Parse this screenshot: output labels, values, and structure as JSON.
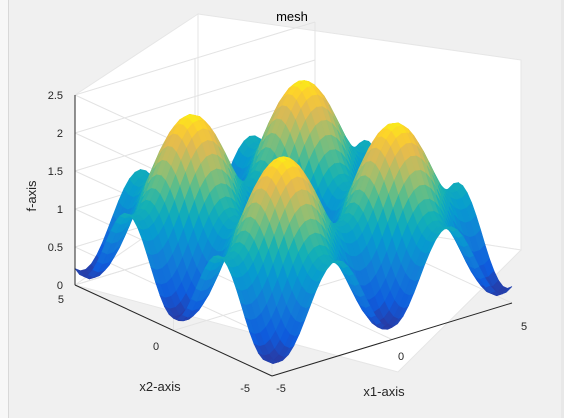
{
  "figure": {
    "title": "mesh"
  },
  "chart_data": {
    "type": "surface",
    "title": "mesh",
    "xlabel": "x1-axis",
    "ylabel": "x2-axis",
    "zlabel": "f-axis",
    "xlim": [
      -5,
      5
    ],
    "ylim": [
      -5,
      5
    ],
    "zlim": [
      0,
      2.5
    ],
    "x_ticks": [
      "-5",
      "0",
      "5"
    ],
    "y_ticks": [
      "-5",
      "0",
      "5"
    ],
    "z_ticks": [
      "0",
      "0.5",
      "1",
      "1.5",
      "2",
      "2.5"
    ],
    "grid": true,
    "colormap": "parula",
    "colors": {
      "background": "#f0f0f0",
      "axes_bg": "#ffffff",
      "grid": "#e6e6e6",
      "axis_line": "#262626"
    },
    "z_range_observed": [
      0,
      2.35
    ],
    "peaks": [
      {
        "x1": -1.6,
        "x2": 1.6,
        "f": 2.35
      },
      {
        "x1": -1.6,
        "x2": -1.6,
        "f": 2.35
      },
      {
        "x1": 1.6,
        "x2": 1.6,
        "f": 2.35
      },
      {
        "x1": 1.6,
        "x2": -1.6,
        "f": 2.35
      }
    ],
    "valleys": [
      {
        "x1": 0,
        "x2": -5,
        "f": 0.05
      },
      {
        "x1": 5,
        "x2": 0,
        "f": 0.05
      },
      {
        "x1": -5,
        "x2": 0,
        "f": 0.2
      },
      {
        "x1": 0,
        "x2": 5,
        "f": 0.2
      }
    ]
  }
}
